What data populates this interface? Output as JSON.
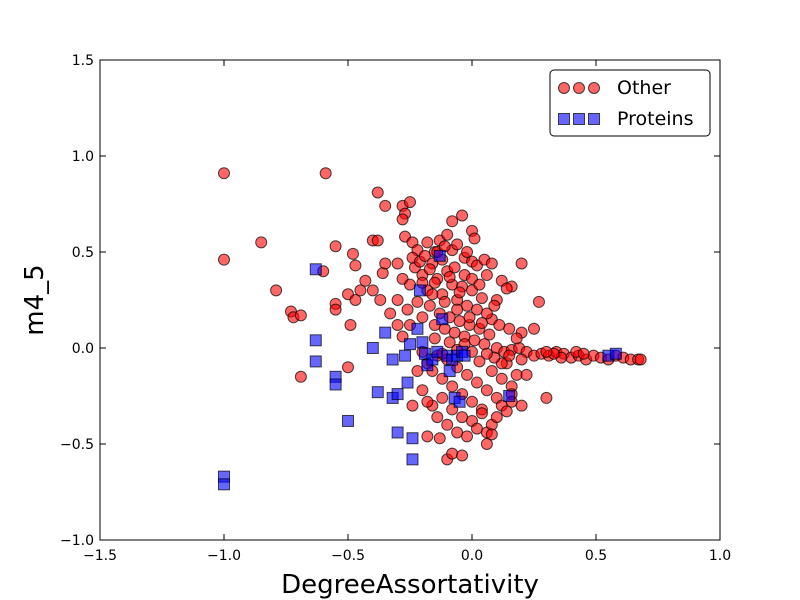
{
  "chart_data": {
    "type": "scatter",
    "title": "",
    "xlabel": "DegreeAssortativity",
    "ylabel": "m4_5",
    "xlim": [
      -1.5,
      1.0
    ],
    "ylim": [
      -1.0,
      1.5
    ],
    "xticks": [
      "−1.5",
      "−1.0",
      "−0.5",
      "0.0",
      "0.5",
      "1.0"
    ],
    "xtick_values": [
      -1.5,
      -1.0,
      -0.5,
      0.0,
      0.5,
      1.0
    ],
    "yticks": [
      "−1.0",
      "−0.5",
      "0.0",
      "0.5",
      "1.0",
      "1.5"
    ],
    "ytick_values": [
      -1.0,
      -0.5,
      0.0,
      0.5,
      1.0,
      1.5
    ],
    "grid": false,
    "legend_position": "top-right",
    "series": [
      {
        "name": "Other",
        "marker": "circle",
        "color": "#ff0000",
        "points": [
          [
            -1.0,
            0.91
          ],
          [
            -0.59,
            0.91
          ],
          [
            -1.0,
            0.46
          ],
          [
            -0.85,
            0.55
          ],
          [
            -0.79,
            0.3
          ],
          [
            -0.73,
            0.19
          ],
          [
            -0.72,
            0.16
          ],
          [
            -0.69,
            0.17
          ],
          [
            -0.69,
            -0.15
          ],
          [
            -0.6,
            0.4
          ],
          [
            -0.55,
            0.53
          ],
          [
            -0.55,
            0.23
          ],
          [
            -0.55,
            0.2
          ],
          [
            -0.5,
            0.28
          ],
          [
            -0.5,
            -0.1
          ],
          [
            -0.49,
            0.12
          ],
          [
            -0.48,
            0.49
          ],
          [
            -0.47,
            0.43
          ],
          [
            -0.47,
            0.25
          ],
          [
            -0.45,
            0.3
          ],
          [
            -0.43,
            0.35
          ],
          [
            -0.4,
            0.56
          ],
          [
            -0.38,
            0.56
          ],
          [
            -0.38,
            0.81
          ],
          [
            -0.35,
            0.74
          ],
          [
            -0.4,
            0.3
          ],
          [
            -0.37,
            0.25
          ],
          [
            -0.36,
            0.39
          ],
          [
            -0.35,
            0.44
          ],
          [
            -0.33,
            0.18
          ],
          [
            -0.3,
            0.12
          ],
          [
            -0.3,
            0.25
          ],
          [
            -0.28,
            0.74
          ],
          [
            -0.27,
            0.7
          ],
          [
            -0.27,
            0.58
          ],
          [
            -0.28,
            0.67
          ],
          [
            -0.25,
            0.76
          ],
          [
            -0.24,
            0.55
          ],
          [
            -0.22,
            0.51
          ],
          [
            -0.18,
            0.55
          ],
          [
            -0.15,
            0.5
          ],
          [
            -0.13,
            0.56
          ],
          [
            -0.1,
            0.59
          ],
          [
            -0.08,
            0.51
          ],
          [
            -0.06,
            0.54
          ],
          [
            -0.08,
            0.66
          ],
          [
            -0.04,
            0.69
          ],
          [
            0.0,
            0.61
          ],
          [
            0.01,
            0.57
          ],
          [
            -0.03,
            0.47
          ],
          [
            0.0,
            0.45
          ],
          [
            0.02,
            0.43
          ],
          [
            0.05,
            0.46
          ],
          [
            0.08,
            0.44
          ],
          [
            0.12,
            0.35
          ],
          [
            0.16,
            0.32
          ],
          [
            0.2,
            0.44
          ],
          [
            0.14,
            0.31
          ],
          [
            0.1,
            0.25
          ],
          [
            0.08,
            0.15
          ],
          [
            0.11,
            0.12
          ],
          [
            0.2,
            0.08
          ],
          [
            0.27,
            0.24
          ],
          [
            0.25,
            0.1
          ],
          [
            -0.3,
            0.44
          ],
          [
            -0.28,
            0.36
          ],
          [
            -0.25,
            0.33
          ],
          [
            -0.23,
            0.42
          ],
          [
            -0.2,
            0.38
          ],
          [
            -0.18,
            0.3
          ],
          [
            -0.16,
            0.44
          ],
          [
            -0.14,
            0.36
          ],
          [
            -0.12,
            0.28
          ],
          [
            -0.1,
            0.4
          ],
          [
            -0.08,
            0.33
          ],
          [
            -0.06,
            0.25
          ],
          [
            -0.04,
            0.32
          ],
          [
            -0.02,
            0.22
          ],
          [
            0.0,
            0.3
          ],
          [
            0.02,
            0.2
          ],
          [
            0.04,
            0.26
          ],
          [
            0.06,
            0.18
          ],
          [
            -0.26,
            0.2
          ],
          [
            -0.22,
            0.24
          ],
          [
            -0.2,
            0.16
          ],
          [
            -0.17,
            0.22
          ],
          [
            -0.15,
            0.12
          ],
          [
            -0.13,
            0.18
          ],
          [
            -0.11,
            0.1
          ],
          [
            -0.09,
            0.16
          ],
          [
            -0.07,
            0.08
          ],
          [
            -0.05,
            0.14
          ],
          [
            -0.03,
            0.06
          ],
          [
            -0.01,
            0.12
          ],
          [
            0.01,
            0.04
          ],
          [
            0.03,
            0.1
          ],
          [
            0.05,
            0.02
          ],
          [
            0.07,
            0.07
          ],
          [
            -0.24,
            0.47
          ],
          [
            -0.21,
            0.45
          ],
          [
            -0.19,
            0.48
          ],
          [
            -0.17,
            0.41
          ],
          [
            -0.15,
            0.34
          ],
          [
            -0.12,
            0.46
          ],
          [
            -0.09,
            0.37
          ],
          [
            -0.07,
            0.42
          ],
          [
            -0.05,
            0.29
          ],
          [
            -0.03,
            0.38
          ],
          [
            0.0,
            0.36
          ],
          [
            0.03,
            0.33
          ],
          [
            -0.2,
            -0.02
          ],
          [
            -0.18,
            -0.08
          ],
          [
            -0.16,
            -0.12
          ],
          [
            -0.14,
            -0.04
          ],
          [
            -0.12,
            -0.16
          ],
          [
            -0.1,
            -0.06
          ],
          [
            -0.08,
            -0.2
          ],
          [
            -0.06,
            -0.1
          ],
          [
            -0.04,
            -0.24
          ],
          [
            -0.02,
            -0.14
          ],
          [
            0.0,
            -0.28
          ],
          [
            0.02,
            -0.18
          ],
          [
            0.04,
            -0.32
          ],
          [
            0.06,
            -0.22
          ],
          [
            0.08,
            -0.12
          ],
          [
            0.1,
            -0.26
          ],
          [
            0.12,
            -0.16
          ],
          [
            0.14,
            -0.08
          ],
          [
            0.16,
            -0.2
          ],
          [
            0.18,
            -0.14
          ],
          [
            -0.16,
            -0.3
          ],
          [
            -0.14,
            -0.36
          ],
          [
            -0.12,
            -0.26
          ],
          [
            -0.1,
            -0.4
          ],
          [
            -0.08,
            -0.32
          ],
          [
            -0.06,
            -0.44
          ],
          [
            -0.04,
            -0.36
          ],
          [
            -0.02,
            -0.46
          ],
          [
            0.0,
            -0.38
          ],
          [
            0.02,
            -0.42
          ],
          [
            0.04,
            -0.34
          ],
          [
            0.06,
            -0.44
          ],
          [
            0.08,
            -0.4
          ],
          [
            0.1,
            -0.36
          ],
          [
            0.12,
            -0.3
          ],
          [
            -0.18,
            -0.46
          ],
          [
            -0.13,
            -0.47
          ],
          [
            -0.1,
            -0.58
          ],
          [
            -0.08,
            -0.55
          ],
          [
            -0.04,
            -0.56
          ],
          [
            0.06,
            -0.5
          ],
          [
            0.08,
            -0.45
          ],
          [
            0.14,
            -0.33
          ],
          [
            0.16,
            -0.24
          ],
          [
            0.2,
            -0.3
          ],
          [
            0.22,
            -0.14
          ],
          [
            0.3,
            -0.26
          ],
          [
            0.16,
            -0.28
          ],
          [
            -0.22,
            -0.12
          ],
          [
            -0.2,
            -0.22
          ],
          [
            -0.18,
            -0.28
          ],
          [
            -0.24,
            -0.3
          ],
          [
            0.1,
            0.0
          ],
          [
            0.13,
            -0.02
          ],
          [
            0.16,
            -0.01
          ],
          [
            0.19,
            0.0
          ],
          [
            0.22,
            -0.02
          ],
          [
            0.25,
            -0.04
          ],
          [
            0.28,
            -0.03
          ],
          [
            0.31,
            -0.04
          ],
          [
            0.34,
            -0.02
          ],
          [
            0.37,
            -0.03
          ],
          [
            0.4,
            -0.05
          ],
          [
            0.43,
            -0.04
          ],
          [
            0.46,
            -0.06
          ],
          [
            0.49,
            -0.04
          ],
          [
            0.52,
            -0.05
          ],
          [
            0.55,
            -0.06
          ],
          [
            0.58,
            -0.04
          ],
          [
            0.61,
            -0.05
          ],
          [
            0.64,
            -0.06
          ],
          [
            0.67,
            -0.06
          ],
          [
            0.68,
            -0.06
          ],
          [
            0.42,
            -0.02
          ],
          [
            0.45,
            -0.03
          ],
          [
            0.36,
            -0.05
          ],
          [
            0.33,
            -0.03
          ],
          [
            0.3,
            -0.02
          ],
          [
            0.2,
            -0.06
          ],
          [
            0.15,
            -0.04
          ],
          [
            0.12,
            -0.08
          ],
          [
            0.09,
            -0.05
          ],
          [
            0.06,
            -0.03
          ],
          [
            0.03,
            -0.07
          ],
          [
            0.0,
            -0.02
          ],
          [
            -0.03,
            0.02
          ],
          [
            -0.06,
            -0.01
          ],
          [
            -0.09,
            0.03
          ],
          [
            -0.12,
            -0.03
          ],
          [
            -0.15,
            0.05
          ],
          [
            -0.2,
            0.34
          ],
          [
            -0.16,
            0.28
          ],
          [
            -0.11,
            0.24
          ],
          [
            -0.06,
            0.2
          ],
          [
            -0.01,
            0.16
          ],
          [
            0.04,
            0.13
          ],
          [
            0.09,
            0.22
          ],
          [
            0.15,
            0.1
          ],
          [
            0.18,
            0.05
          ],
          [
            -0.25,
            0.12
          ],
          [
            -0.28,
            0.06
          ],
          [
            -0.14,
            0.5
          ],
          [
            -0.11,
            0.53
          ],
          [
            -0.02,
            0.5
          ],
          [
            0.06,
            0.38
          ]
        ]
      },
      {
        "name": "Proteins",
        "marker": "square",
        "color": "#0000ff",
        "points": [
          [
            -1.0,
            -0.67
          ],
          [
            -1.0,
            -0.71
          ],
          [
            -0.63,
            0.41
          ],
          [
            -0.63,
            0.04
          ],
          [
            -0.63,
            -0.07
          ],
          [
            -0.55,
            -0.15
          ],
          [
            -0.55,
            -0.19
          ],
          [
            -0.5,
            -0.38
          ],
          [
            -0.4,
            0.0
          ],
          [
            -0.38,
            -0.23
          ],
          [
            -0.35,
            0.08
          ],
          [
            -0.32,
            -0.06
          ],
          [
            -0.32,
            -0.26
          ],
          [
            -0.3,
            -0.24
          ],
          [
            -0.3,
            -0.44
          ],
          [
            -0.27,
            -0.04
          ],
          [
            -0.26,
            -0.18
          ],
          [
            -0.25,
            0.02
          ],
          [
            -0.24,
            -0.47
          ],
          [
            -0.24,
            -0.58
          ],
          [
            -0.22,
            0.1
          ],
          [
            -0.21,
            0.3
          ],
          [
            -0.2,
            0.03
          ],
          [
            -0.19,
            -0.03
          ],
          [
            -0.18,
            -0.09
          ],
          [
            -0.16,
            -0.06
          ],
          [
            -0.14,
            -0.02
          ],
          [
            -0.13,
            0.48
          ],
          [
            -0.12,
            0.15
          ],
          [
            -0.1,
            -0.04
          ],
          [
            -0.09,
            -0.12
          ],
          [
            -0.08,
            -0.06
          ],
          [
            -0.07,
            -0.26
          ],
          [
            -0.06,
            -0.04
          ],
          [
            -0.05,
            -0.28
          ],
          [
            -0.04,
            -0.02
          ],
          [
            -0.03,
            -0.04
          ],
          [
            0.15,
            -0.25
          ],
          [
            0.55,
            -0.04
          ],
          [
            0.58,
            -0.03
          ]
        ]
      }
    ]
  }
}
